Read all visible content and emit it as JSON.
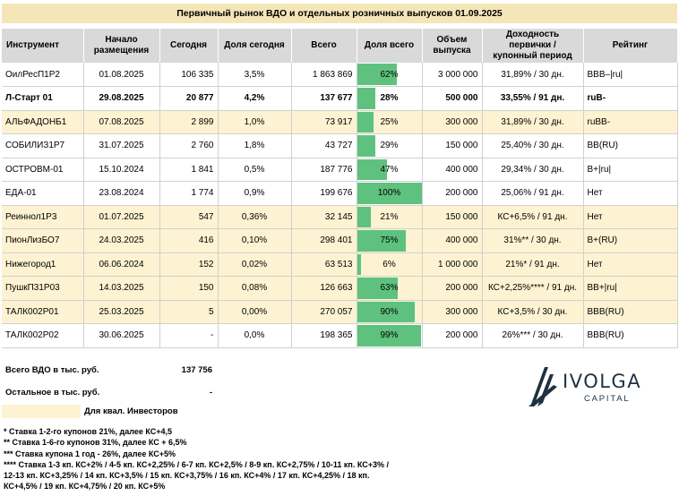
{
  "title": "Первичный рынок ВДО и отдельных розничных выпусков 01.09.2025",
  "headers": {
    "instrument": "Инструмент",
    "start_line1": "Начало",
    "start_line2": "размещения",
    "today": "Сегодня",
    "share_today": "Доля сегодня",
    "total": "Всего",
    "share_total": "Доля всего",
    "volume_line1": "Объем",
    "volume_line2": "выпуска",
    "yield_line1": "Доходность",
    "yield_line2": "первички /",
    "yield_line3": "купонный период",
    "rating": "Рейтинг"
  },
  "rows": [
    {
      "instrument": "ОилРесП1Р2",
      "start": "01.08.2025",
      "today": "106 335",
      "share_today": "3,5%",
      "total": "1 863 869",
      "share_total": "62%",
      "share_total_value": 62,
      "volume": "3 000 000",
      "yield": "31,89% / 30 дн.",
      "rating": "BBB–|ru|",
      "highlight": false,
      "bold": false
    },
    {
      "instrument": "Л-Старт 01",
      "start": "29.08.2025",
      "today": "20 877",
      "share_today": "4,2%",
      "total": "137 677",
      "share_total": "28%",
      "share_total_value": 28,
      "volume": "500 000",
      "yield": "33,55% / 91 дн.",
      "rating": "ruB-",
      "highlight": false,
      "bold": true
    },
    {
      "instrument": "АЛЬФАДОНБ1",
      "start": "07.08.2025",
      "today": "2 899",
      "share_today": "1,0%",
      "total": "73 917",
      "share_total": "25%",
      "share_total_value": 25,
      "volume": "300 000",
      "yield": "31,89% / 30 дн.",
      "rating": "ruBB-",
      "highlight": true,
      "bold": false
    },
    {
      "instrument": "СОБИЛИЗ1Р7",
      "start": "31.07.2025",
      "today": "2 760",
      "share_today": "1,8%",
      "total": "43 727",
      "share_total": "29%",
      "share_total_value": 29,
      "volume": "150 000",
      "yield": "25,40% / 30 дн.",
      "rating": "BB(RU)",
      "highlight": false,
      "bold": false
    },
    {
      "instrument": "ОСТРОВМ-01",
      "start": "15.10.2024",
      "today": "1 841",
      "share_today": "0,5%",
      "total": "187 776",
      "share_total": "47%",
      "share_total_value": 47,
      "volume": "400 000",
      "yield": "29,34% / 30 дн.",
      "rating": "B+|ru|",
      "highlight": false,
      "bold": false
    },
    {
      "instrument": "ЕДА-01",
      "start": "23.08.2024",
      "today": "1 774",
      "share_today": "0,9%",
      "total": "199 676",
      "share_total": "100%",
      "share_total_value": 100,
      "volume": "200 000",
      "yield": "25,06% / 91 дн.",
      "rating": "Нет",
      "highlight": false,
      "bold": false
    },
    {
      "instrument": "Реиннол1Р3",
      "start": "01.07.2025",
      "today": "547",
      "share_today": "0,36%",
      "total": "32 145",
      "share_total": "21%",
      "share_total_value": 21,
      "volume": "150 000",
      "yield": "КС+6,5% / 91 дн.",
      "rating": "Нет",
      "highlight": true,
      "bold": false
    },
    {
      "instrument": "ПионЛизБО7",
      "start": "24.03.2025",
      "today": "416",
      "share_today": "0,10%",
      "total": "298 401",
      "share_total": "75%",
      "share_total_value": 75,
      "volume": "400 000",
      "yield": "31%** / 30 дн.",
      "rating": "B+(RU)",
      "highlight": true,
      "bold": false
    },
    {
      "instrument": "Нижегород1",
      "start": "06.06.2024",
      "today": "152",
      "share_today": "0,02%",
      "total": "63 513",
      "share_total": "6%",
      "share_total_value": 6,
      "volume": "1 000 000",
      "yield": "21%* / 91 дн.",
      "rating": "Нет",
      "highlight": true,
      "bold": false
    },
    {
      "instrument": "ПушкП31Р03",
      "start": "14.03.2025",
      "today": "150",
      "share_today": "0,08%",
      "total": "126 663",
      "share_total": "63%",
      "share_total_value": 63,
      "volume": "200 000",
      "yield": "КС+2,25%**** / 91 дн.",
      "rating": "BB+|ru|",
      "highlight": true,
      "bold": false
    },
    {
      "instrument": "ТАЛК002Р01",
      "start": "25.03.2025",
      "today": "5",
      "share_today": "0,00%",
      "total": "270 057",
      "share_total": "90%",
      "share_total_value": 90,
      "volume": "300 000",
      "yield": "КС+3,5% / 30 дн.",
      "rating": "BBB(RU)",
      "highlight": true,
      "bold": false
    },
    {
      "instrument": "ТАЛК002Р02",
      "start": "30.06.2025",
      "today": "-",
      "share_today": "0,0%",
      "total": "198 365",
      "share_total": "99%",
      "share_total_value": 99,
      "volume": "200 000",
      "yield": "26%*** / 30 дн.",
      "rating": "BBB(RU)",
      "highlight": false,
      "bold": false
    }
  ],
  "summary": {
    "total_label": "Всего ВДО в тыс. руб.",
    "total_value": "137 756",
    "rest_label": "Остальное в тыс. руб.",
    "rest_value": "-",
    "qual_label": "Для квал. Инвесторов"
  },
  "notes": [
    "* Ставка 1-2-го купонов 21%, далее КС+4,5",
    "** Ставка 1-6-го купонов 31%, далее КС + 6,5%",
    "*** Ставка купона 1 год - 26%, далее КС+5%",
    "**** Ставка 1-3 кп. КС+2% / 4-5 кп. КС+2,25% / 6-7 кп. КС+2,5% / 8-9 кп. КС+2,75% / 10-11 кп. КС+3% / 12-13 кп. КС+3,25% / 14 кп. КС+3,5% / 15 кп. КС+3,75% / 16 кп. КС+4% / 17 кп. КС+4,25% / 18 кп. КС+4,5% / 19 кп. КС+4,75% / 20 кп. КС+5%"
  ],
  "logo": {
    "word": "IVOLGA",
    "sub": "CAPITAL"
  },
  "colors": {
    "title_bg": "#f5e6b8",
    "header_bg": "#d9d9d9",
    "highlight_bg": "#fdf3d2",
    "bar": "#5ec27e",
    "logo": "#1e3140"
  }
}
